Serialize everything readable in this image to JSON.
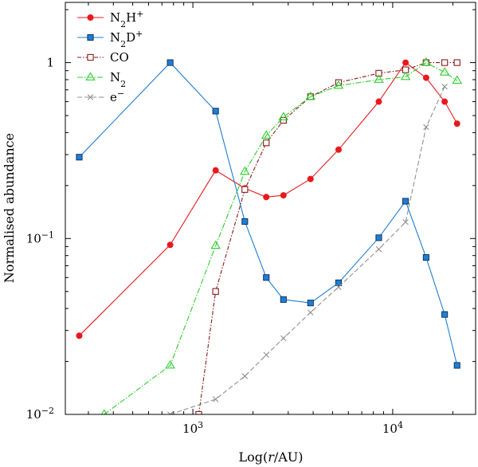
{
  "chart_data": {
    "type": "line",
    "xlabel": "Log(r/AU)",
    "ylabel": "Normalised abundance",
    "xscale": "log",
    "yscale": "log",
    "xlim": [
      230,
      26000
    ],
    "ylim": [
      0.01,
      2.2
    ],
    "xticks": [
      {
        "value": 1000,
        "label": "10^3"
      },
      {
        "value": 10000,
        "label": "10^4"
      }
    ],
    "yticks": [
      {
        "value": 0.01,
        "label": "10^-2"
      },
      {
        "value": 0.1,
        "label": "10^-1"
      },
      {
        "value": 1,
        "label": "1"
      }
    ],
    "legend_position": "top-left",
    "series": [
      {
        "name": "N2H+",
        "name_main": "N",
        "name_sub": "2",
        "name_rest": "H",
        "name_sup": "+",
        "color": "#e8191c",
        "dash": "",
        "marker": "circle",
        "x": [
          270,
          770,
          1300,
          1820,
          2330,
          2840,
          3880,
          5360,
          8520,
          11600,
          14700,
          18200,
          21000
        ],
        "y": [
          0.028,
          0.092,
          0.244,
          0.193,
          0.172,
          0.176,
          0.218,
          0.32,
          0.6,
          1.0,
          0.82,
          0.6,
          0.45
        ]
      },
      {
        "name": "N2D+",
        "name_main": "N",
        "name_sub": "2",
        "name_rest": "D",
        "name_sup": "+",
        "color": "#1f7ed0",
        "dash": "",
        "marker": "square-filled",
        "x": [
          270,
          770,
          1300,
          1820,
          2330,
          2840,
          3880,
          5360,
          8520,
          11600,
          14700,
          18200,
          21000
        ],
        "y": [
          0.29,
          1.0,
          0.53,
          0.125,
          0.06,
          0.045,
          0.043,
          0.056,
          0.101,
          0.163,
          0.078,
          0.037,
          0.019
        ]
      },
      {
        "name": "CO",
        "name_main": "CO",
        "name_sub": "",
        "name_rest": "",
        "name_sup": "",
        "color": "#8b1a1a",
        "dash": "5,2,1.5,2",
        "marker": "square-open",
        "x": [
          1070,
          1300,
          1820,
          2330,
          2840,
          3880,
          5360,
          8520,
          11600,
          14700,
          18200,
          21000
        ],
        "y": [
          0.01,
          0.05,
          0.19,
          0.35,
          0.47,
          0.64,
          0.77,
          0.87,
          0.91,
          1.0,
          1.0,
          1.0
        ]
      },
      {
        "name": "N2",
        "name_main": "N",
        "name_sub": "2",
        "name_rest": "",
        "name_sup": "",
        "color": "#2ccf2c",
        "dash": "7,2,1.5,2",
        "marker": "triangle-open",
        "x": [
          360,
          770,
          1300,
          1820,
          2330,
          2840,
          3880,
          5360,
          8520,
          11600,
          14700,
          18200,
          21000
        ],
        "y": [
          0.01,
          0.019,
          0.091,
          0.24,
          0.385,
          0.49,
          0.64,
          0.74,
          0.8,
          0.83,
          1.0,
          0.88,
          0.79
        ]
      },
      {
        "name": "e-",
        "name_main": "e",
        "name_sub": "",
        "name_rest": "",
        "name_sup": "−",
        "color": "#909090",
        "dash": "6,3",
        "marker": "cross",
        "x": [
          770,
          1300,
          1820,
          2330,
          2840,
          3880,
          5360,
          8520,
          11600,
          14700,
          18200
        ],
        "y": [
          0.01,
          0.0122,
          0.0165,
          0.0218,
          0.0271,
          0.038,
          0.053,
          0.087,
          0.124,
          0.43,
          0.73
        ]
      }
    ]
  }
}
